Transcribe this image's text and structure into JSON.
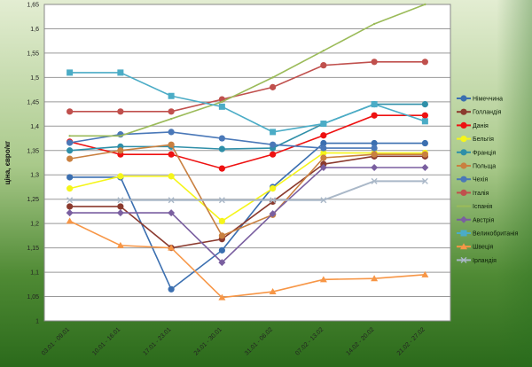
{
  "chart_data": {
    "type": "line",
    "title": "",
    "xlabel": "",
    "ylabel": "ціна, євро/кг",
    "ylim": [
      1,
      1.65
    ],
    "ytick_step": 0.05,
    "yticks": [
      "1",
      "1,05",
      "1,1",
      "1,15",
      "1,2",
      "1,25",
      "1,3",
      "1,35",
      "1,4",
      "1,45",
      "1,5",
      "1,55",
      "1,6",
      "1,65"
    ],
    "grid": true,
    "legend_position": "right",
    "categories": [
      "03.01 - 09.01",
      "10.01 - 16.01",
      "17.01 - 23.01",
      "24.01 - 30.01",
      "31.01 - 06.02",
      "07.02 - 13.02",
      "14.02 - 20.02",
      "21.02 - 27.02"
    ],
    "series": [
      {
        "name": "Німеччина",
        "color": "#3b6fb0",
        "marker": "circle",
        "values": [
          1.295,
          1.295,
          1.065,
          1.145,
          1.275,
          1.365,
          1.365,
          1.365
        ]
      },
      {
        "name": "Голландія",
        "color": "#8b3a2e",
        "marker": "circle",
        "values": [
          1.235,
          1.235,
          1.15,
          1.168,
          1.245,
          1.322,
          1.338,
          1.338
        ]
      },
      {
        "name": "Данія",
        "color": "#ee1111",
        "marker": "circle",
        "values": [
          1.368,
          1.342,
          1.342,
          1.313,
          1.342,
          1.381,
          1.422,
          1.422
        ]
      },
      {
        "name": "Бельгія",
        "color": "#f5f51a",
        "marker": "circle",
        "values": [
          1.272,
          1.297,
          1.297,
          1.205,
          1.272,
          1.345,
          1.345,
          1.345
        ]
      },
      {
        "name": "Франція",
        "color": "#2f8fa8",
        "marker": "circle",
        "values": [
          1.35,
          1.358,
          1.358,
          1.353,
          1.355,
          1.405,
          1.445,
          1.445
        ]
      },
      {
        "name": "Польща",
        "color": "#c98040",
        "marker": "circle",
        "values": [
          1.333,
          1.35,
          1.362,
          1.175,
          1.218,
          1.335,
          1.342,
          1.342
        ]
      },
      {
        "name": "Чехія",
        "color": "#4a78b8",
        "marker": "circle",
        "values": [
          1.366,
          1.383,
          1.388,
          1.375,
          1.362,
          1.355,
          1.355,
          null
        ]
      },
      {
        "name": "Італія",
        "color": "#c0504d",
        "marker": "circle",
        "values": [
          1.43,
          1.43,
          1.43,
          1.455,
          1.48,
          1.525,
          1.532,
          1.532
        ]
      },
      {
        "name": "Іспанія",
        "color": "#9bbb59",
        "marker": "none",
        "values": [
          1.38,
          1.38,
          1.415,
          1.45,
          1.5,
          1.555,
          1.61,
          1.65
        ]
      },
      {
        "name": "Австрія",
        "color": "#7a5fa0",
        "marker": "diamond",
        "values": [
          1.222,
          1.222,
          1.222,
          1.12,
          1.22,
          1.315,
          1.315,
          1.315
        ]
      },
      {
        "name": "Великобританія",
        "color": "#4bacc6",
        "marker": "square",
        "values": [
          1.51,
          1.51,
          1.462,
          1.44,
          1.388,
          1.405,
          1.445,
          1.41
        ]
      },
      {
        "name": "Швеція",
        "color": "#f79646",
        "marker": "triangle",
        "values": [
          1.205,
          1.155,
          1.15,
          1.048,
          1.06,
          1.085,
          1.087,
          1.095
        ]
      },
      {
        "name": "Ірландія",
        "color": "#aab8c8",
        "marker": "x",
        "values": [
          1.248,
          1.248,
          1.248,
          1.248,
          1.248,
          1.248,
          1.287,
          1.287
        ]
      }
    ]
  }
}
